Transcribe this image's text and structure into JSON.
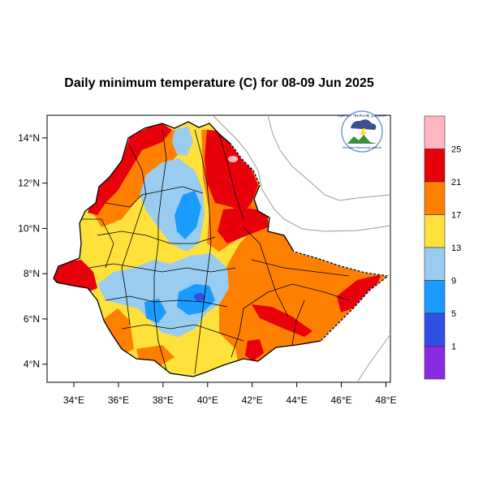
{
  "title": "Daily minimum temperature (C) for 08-09 Jun 2025",
  "logo": {
    "arc_text": "የኢትዮጵያ ሜትዎሮሎጂ ኢንስቲትዩት",
    "caption": "Ethiopian Meteorology Institute"
  },
  "axes": {
    "x_ticks": [
      {
        "value": 34,
        "label": "34°E"
      },
      {
        "value": 36,
        "label": "36°E"
      },
      {
        "value": 38,
        "label": "38°E"
      },
      {
        "value": 40,
        "label": "40°E"
      },
      {
        "value": 42,
        "label": "42°E"
      },
      {
        "value": 44,
        "label": "44°E"
      },
      {
        "value": 46,
        "label": "46°E"
      },
      {
        "value": 48,
        "label": "48°E"
      }
    ],
    "y_ticks": [
      {
        "value": 4,
        "label": "4°N"
      },
      {
        "value": 6,
        "label": "6°N"
      },
      {
        "value": 8,
        "label": "8°N"
      },
      {
        "value": 10,
        "label": "10°N"
      },
      {
        "value": 12,
        "label": "12°N"
      },
      {
        "value": 14,
        "label": "14°N"
      }
    ],
    "lon_range": [
      32.8,
      48.2
    ],
    "lat_range": [
      3.2,
      15.0
    ]
  },
  "colorbar": {
    "colors": [
      "#ffb6c1",
      "#e8000b",
      "#ff8000",
      "#ffe13c",
      "#99ccee",
      "#1a9bff",
      "#2f4fe5",
      "#8a2be2"
    ],
    "labels": [
      "25",
      "21",
      "17",
      "13",
      "9",
      "5",
      "1"
    ]
  },
  "palette": {
    "background_land": "#ffe13c",
    "cool": "#99ccee",
    "cold": "#1a9bff",
    "colder": "#2f4fe5",
    "warm": "#ff8000",
    "hot": "#e8000b",
    "hottest": "#ffb6c1"
  }
}
